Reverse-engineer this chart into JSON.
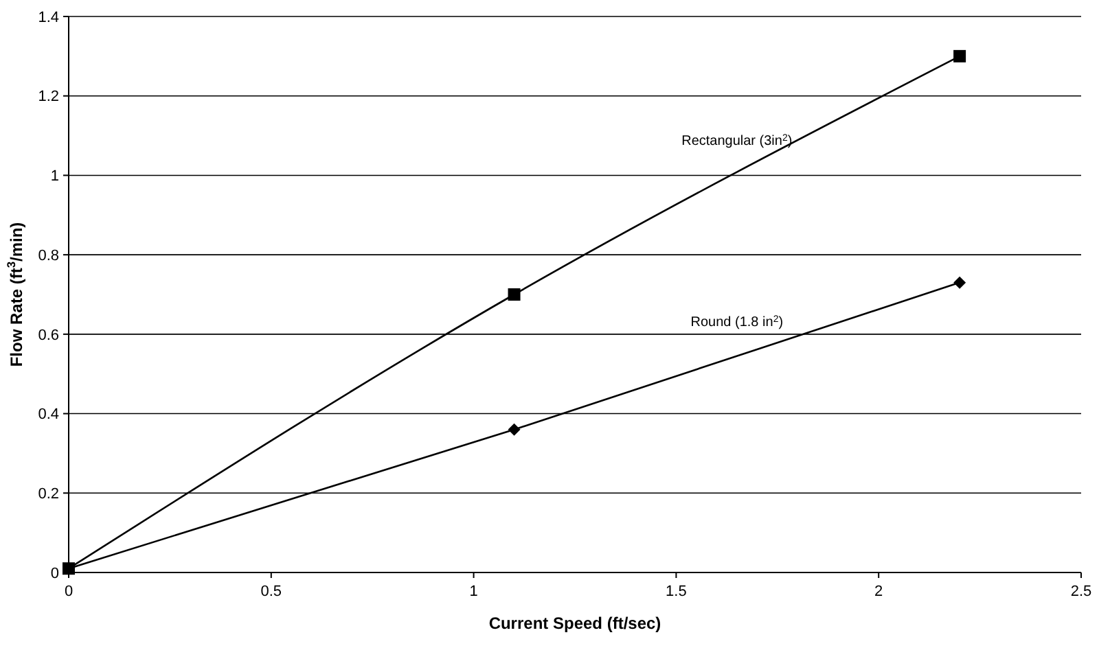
{
  "chart_data": {
    "type": "line",
    "xlabel": "Current Speed (ft/sec)",
    "ylabel": "Flow Rate (ft$^{3}$/min)",
    "xlim": [
      0,
      2.5
    ],
    "xticks": [
      0,
      0.5,
      1,
      1.5,
      2,
      2.5
    ],
    "ylim": [
      0,
      1.4
    ],
    "yticks": [
      0,
      0.2,
      0.4,
      0.6,
      0.8,
      1,
      1.2,
      1.4
    ],
    "grid": "y",
    "line_style": "solid",
    "series": [
      {
        "name": "Rectangular (3in$^{2}$)",
        "color": "#000000",
        "marker": "square",
        "x": [
          0,
          1.1,
          2.2
        ],
        "values": [
          0.01,
          0.7,
          1.3
        ]
      },
      {
        "name": "Round (1.8 in$^{2}$)",
        "color": "#000000",
        "marker": "diamond",
        "x": [
          0,
          1.1,
          2.2
        ],
        "values": [
          0.01,
          0.36,
          0.73
        ]
      }
    ]
  }
}
